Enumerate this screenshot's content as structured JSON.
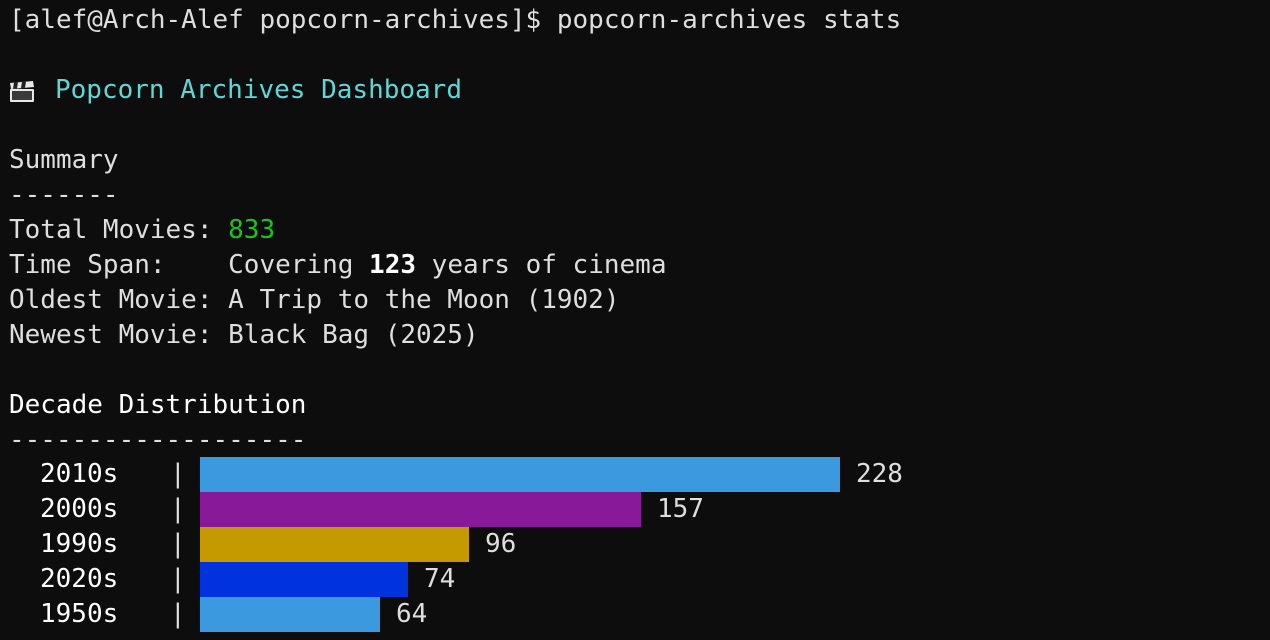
{
  "prompt": {
    "text": "[alef@Arch-Alef popcorn-archives]$ popcorn-archives stats"
  },
  "header": {
    "icon": "clapperboard-icon",
    "title": "Popcorn Archives Dashboard"
  },
  "summary": {
    "heading": "Summary",
    "underline": "-------",
    "total_label": "Total Movies: ",
    "total_value": "833",
    "span_label": "Time Span:    ",
    "span_prefix": "Covering ",
    "span_years": "123",
    "span_suffix": " years of cinema",
    "oldest_label": "Oldest Movie: ",
    "oldest_value": "A Trip to the Moon (1902)",
    "newest_label": "Newest Movie: ",
    "newest_value": "Black Bag (2025)"
  },
  "distribution": {
    "heading": "Decade Distribution",
    "underline": "-------------------",
    "separator": "|"
  },
  "chart_data": {
    "type": "bar",
    "orientation": "horizontal",
    "categories": [
      "2010s",
      "2000s",
      "1990s",
      "2020s",
      "1950s"
    ],
    "values": [
      228,
      157,
      96,
      74,
      64
    ],
    "colors": [
      "#3b99e0",
      "#881a99",
      "#c59a00",
      "#0033dd",
      "#3b99e0"
    ],
    "xlim": [
      0,
      228
    ]
  }
}
